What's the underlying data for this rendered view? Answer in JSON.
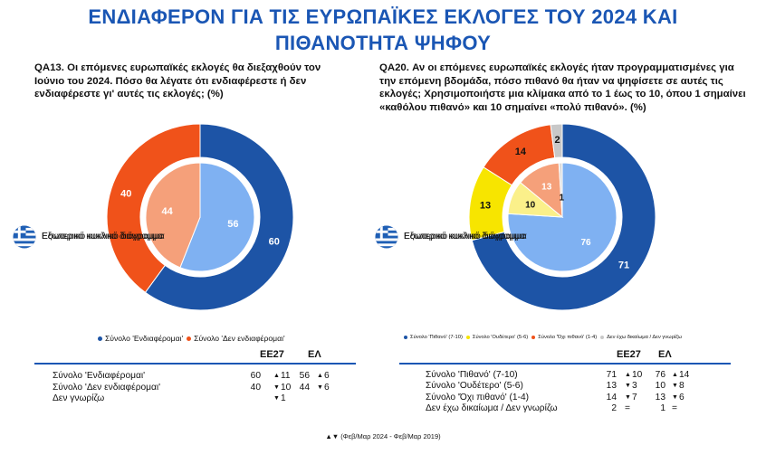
{
  "title_line1": "ΕΝΔΙΑΦΕΡΟΝ ΓΙΑ ΤΙΣ ΕΥΡΩΠΑΪΚΕΣ ΕΚΛΟΓΕΣ ΤΟΥ 2024 ΚΑΙ",
  "title_line2": "ΠΙΘΑΝΟΤΗΤΑ ΨΗΦΟΥ",
  "legend_outer": "Εξωτερικό κυκλικό διάγραμμα",
  "legend_inner": "Εσωτερικό κυκλικό διάγραμμα",
  "footnote": "▲▼ (Φεβ/Μαρ 2024 - Φεβ/Μαρ 2019)",
  "chart_data": [
    {
      "type": "pie",
      "title": "QA13. Οι επόμενες ευρωπαϊκές εκλογές θα διεξαχθούν τον Ιούνιο του 2024. Πόσο θα λέγατε ότι ενδιαφέρεστε ή δεν ενδιαφέρεστε γι' αυτές τις εκλογές; (%)",
      "categories": [
        "Σύνολο 'Ενδιαφέρομαι'",
        "Σύνολο 'Δεν ενδιαφέρομαι'"
      ],
      "colors": [
        "#1d54a6",
        "#f0521a"
      ],
      "inner_colors": [
        "#7fb1f2",
        "#f5a07a"
      ],
      "series": [
        {
          "name": "ΕΕ27",
          "values": [
            60,
            40
          ]
        },
        {
          "name": "ΕΛ",
          "values": [
            56,
            44
          ]
        }
      ],
      "table": {
        "headers": [
          "ΕΕ27",
          "ΕΛ"
        ],
        "rows": [
          {
            "label": "Σύνολο 'Ενδιαφέρομαι'",
            "eu": "60",
            "eu_arrow": "▲",
            "eu_change": "11",
            "gr": "56",
            "gr_arrow": "▲",
            "gr_change": "6"
          },
          {
            "label": "Σύνολο 'Δεν ενδιαφέρομαι'",
            "eu": "40",
            "eu_arrow": "▼",
            "eu_change": "10",
            "gr": "44",
            "gr_arrow": "▼",
            "gr_change": "6"
          },
          {
            "label": "Δεν γνωρίζω",
            "eu": "",
            "eu_arrow": "▼",
            "eu_change": "1",
            "gr": "",
            "gr_arrow": "",
            "gr_change": ""
          }
        ]
      }
    },
    {
      "type": "pie",
      "title": "QA20. Αν οι επόμενες ευρωπαϊκές εκλογές ήταν προγραμματισμένες για την επόμενη βδομάδα, πόσο πιθανό θα ήταν να ψηφίσετε σε αυτές τις εκλογές; Χρησιμοποιήστε μια κλίμακα από το 1 έως το 10, όπου 1 σημαίνει «καθόλου πιθανό» και 10 σημαίνει «πολύ πιθανό». (%)",
      "categories": [
        "Σύνολο 'Πιθανό' (7-10)",
        "Σύνολο 'Ουδέτερο' (5-6)",
        "Σύνολο 'Όχι πιθανό' (1-4)",
        "Δεν έχω δικαίωμα / Δεν γνωρίζω"
      ],
      "colors": [
        "#1d54a6",
        "#f7e500",
        "#f0521a",
        "#c8c8c8"
      ],
      "inner_colors": [
        "#7fb1f2",
        "#fbf08a",
        "#f5a07a",
        "#dcdcdc"
      ],
      "series": [
        {
          "name": "ΕΕ27",
          "values": [
            71,
            13,
            14,
            2
          ]
        },
        {
          "name": "ΕΛ",
          "values": [
            76,
            10,
            13,
            1
          ]
        }
      ],
      "table": {
        "headers": [
          "ΕΕ27",
          "ΕΛ"
        ],
        "rows": [
          {
            "label": "Σύνολο 'Πιθανό' (7-10)",
            "eu": "71",
            "eu_arrow": "▲",
            "eu_change": "10",
            "gr": "76",
            "gr_arrow": "▲",
            "gr_change": "14"
          },
          {
            "label": "Σύνολο 'Ουδέτερο' (5-6)",
            "eu": "13",
            "eu_arrow": "▼",
            "eu_change": "3",
            "gr": "10",
            "gr_arrow": "▼",
            "gr_change": "8"
          },
          {
            "label": "Σύνολο 'Όχι πιθανό' (1-4)",
            "eu": "14",
            "eu_arrow": "▼",
            "eu_change": "7",
            "gr": "13",
            "gr_arrow": "▼",
            "gr_change": "6"
          },
          {
            "label": "Δεν έχω δικαίωμα / Δεν γνωρίζω",
            "eu": "2",
            "eu_arrow": "",
            "eu_change": "=",
            "gr": "1",
            "gr_arrow": "",
            "gr_change": "="
          }
        ]
      }
    }
  ]
}
